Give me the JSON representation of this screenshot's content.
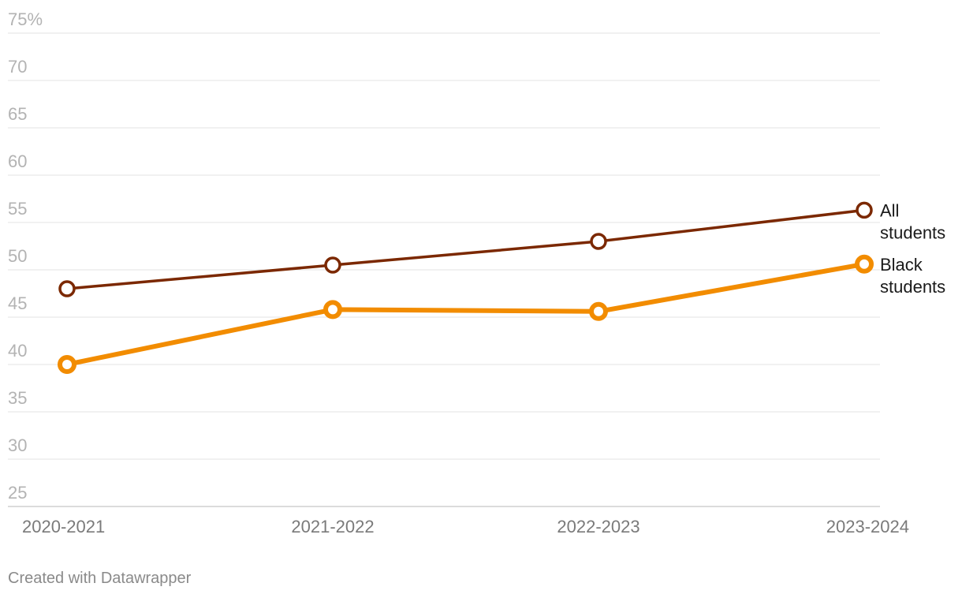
{
  "chart_data": {
    "type": "line",
    "categories": [
      "2020-2021",
      "2021-2022",
      "2022-2023",
      "2023-2024"
    ],
    "y_ticks": [
      "75%",
      "70",
      "65",
      "60",
      "55",
      "50",
      "45",
      "40",
      "35",
      "30",
      "25"
    ],
    "ylim": [
      25,
      75
    ],
    "grid": true,
    "legend": "direct labels at line ends",
    "series": [
      {
        "label_lines": [
          "All",
          "students"
        ],
        "values": [
          48.0,
          50.5,
          53.0,
          56.3
        ],
        "color": "#7b2800",
        "stroke": 3.5
      },
      {
        "label_lines": [
          "Black",
          "students"
        ],
        "values": [
          40.0,
          45.8,
          45.6,
          50.6
        ],
        "color": "#f28c00",
        "stroke": 6
      }
    ]
  },
  "footer": {
    "credit": "Created with Datawrapper"
  }
}
